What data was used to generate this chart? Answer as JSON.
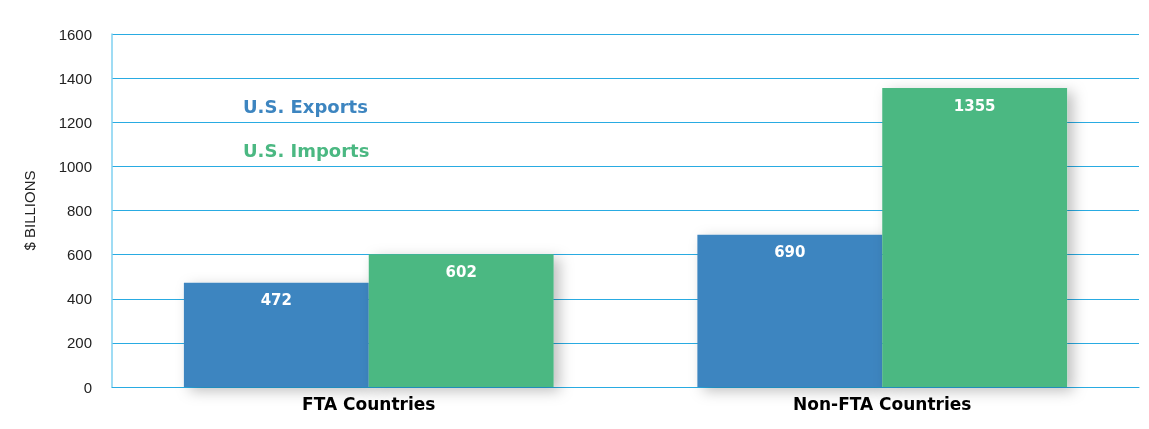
{
  "chart_data": {
    "type": "bar",
    "ylabel": "$ BILLIONS",
    "categories": [
      "FTA Countries",
      "Non-FTA Countries"
    ],
    "series": [
      {
        "name": "U.S. Exports",
        "color": "#3d85c0",
        "values": [
          472,
          690
        ]
      },
      {
        "name": "U.S. Imports",
        "color": "#4bb882",
        "values": [
          602,
          1355
        ]
      }
    ],
    "ylim": [
      0,
      1600
    ],
    "yticks": [
      0,
      200,
      400,
      600,
      800,
      1000,
      1200,
      1400,
      1600
    ],
    "grid": "y",
    "legend": "top left",
    "data_labels": true
  }
}
